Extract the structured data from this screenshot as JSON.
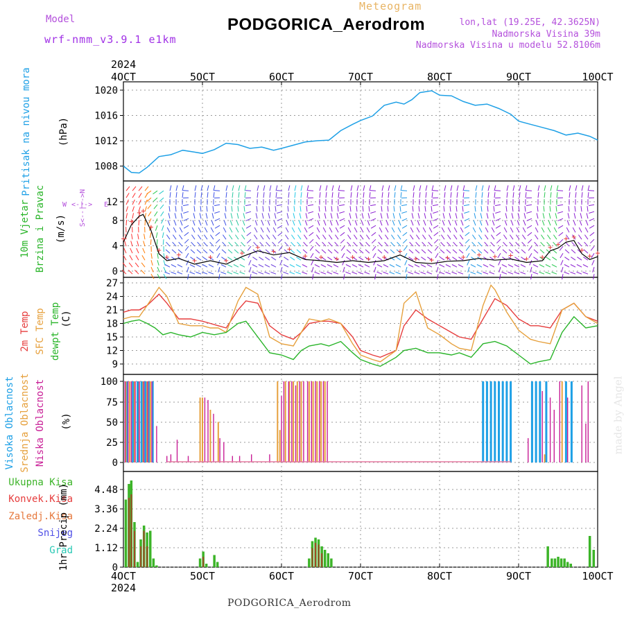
{
  "header": {
    "model_label": "Model",
    "model_name": "wrf-nmm_v3.9.1 e1km",
    "station": "PODGORICA_Aerodrom",
    "meteogram": "Meteogram",
    "coords": "lon,lat (19.25E, 42.3625N)",
    "altitude": "Nadmorska Visina 39m",
    "model_altitude": "Nadmorska Visina u modelu 52.8106m"
  },
  "footer": "PODGORICA_Aerodrom",
  "signature": "made by Angel",
  "year": "2024",
  "x_ticks": [
    "4OCT",
    "5OCT",
    "6OCT",
    "7OCT",
    "8OCT",
    "9OCT",
    "10OCT"
  ],
  "colors": {
    "pressure": "#1ea0e6",
    "temp2m": "#e63c3c",
    "sfc": "#e6a03c",
    "dew": "#28b428",
    "high_cloud": "#1ea0e6",
    "mid_cloud": "#e6a03c",
    "low_cloud": "#c81e96",
    "precip": "#3cb428",
    "conv": "#e63c3c",
    "snow": "#5050e6",
    "hail": "#28c8b4",
    "wind_label": "#28b428",
    "purple": "#b450dc"
  },
  "chart_data": [
    {
      "type": "line",
      "name": "pressure",
      "ylabel": "Pritisak na nivou mora",
      "unit": "(hPa)",
      "yticks": [
        "1008",
        "1012",
        "1016",
        "1020"
      ],
      "ylim": [
        1005.5,
        1021
      ],
      "x_days": [
        4.0,
        4.1,
        4.2,
        4.3,
        4.45,
        4.6,
        4.75,
        4.9,
        5.0,
        5.15,
        5.3,
        5.45,
        5.6,
        5.75,
        5.9,
        6.0,
        6.15,
        6.3,
        6.45,
        6.6,
        6.75,
        6.9,
        7.0,
        7.15,
        7.3,
        7.45,
        7.55,
        7.65,
        7.75,
        7.9,
        8.0,
        8.15,
        8.3,
        8.45,
        8.6,
        8.75,
        8.9,
        9.0,
        9.15,
        9.3,
        9.45,
        9.6,
        9.75,
        9.9,
        10.0
      ],
      "values": [
        1008.0,
        1007.0,
        1006.9,
        1007.8,
        1009.5,
        1009.8,
        1010.5,
        1010.2,
        1010.0,
        1010.6,
        1011.6,
        1011.4,
        1010.8,
        1011.0,
        1010.5,
        1010.8,
        1011.3,
        1011.8,
        1012.0,
        1012.1,
        1013.6,
        1014.6,
        1015.2,
        1015.9,
        1017.6,
        1018.1,
        1017.8,
        1018.5,
        1019.6,
        1019.9,
        1019.2,
        1019.1,
        1018.2,
        1017.6,
        1017.8,
        1017.1,
        1016.2,
        1015.1,
        1014.6,
        1014.1,
        1013.6,
        1012.9,
        1013.2,
        1012.7,
        1012.1
      ]
    },
    {
      "type": "line",
      "name": "wind",
      "ylabel": "10m Vjetar",
      "ylabel2": "Brzina i Pravac",
      "unit": "(m/s)",
      "compass": "N",
      "compass_w": "W",
      "compass_e": "E",
      "compass_s": "S",
      "yticks": [
        "0",
        "4",
        "8",
        "12"
      ],
      "ylim": [
        -1,
        16
      ],
      "x_days": [
        4.0,
        4.1,
        4.2,
        4.25,
        4.35,
        4.45,
        4.55,
        4.7,
        4.9,
        5.1,
        5.3,
        5.5,
        5.7,
        5.9,
        6.1,
        6.3,
        6.5,
        6.7,
        6.9,
        7.1,
        7.3,
        7.5,
        7.7,
        7.9,
        8.1,
        8.3,
        8.5,
        8.7,
        8.9,
        9.1,
        9.3,
        9.4,
        9.5,
        9.6,
        9.7,
        9.8,
        9.9,
        10.0
      ],
      "values": [
        5.0,
        8.0,
        9.5,
        9.8,
        7.0,
        3.0,
        1.8,
        2.2,
        1.2,
        1.8,
        1.2,
        2.5,
        3.5,
        2.8,
        3.2,
        2.0,
        1.8,
        1.5,
        1.8,
        1.5,
        1.8,
        2.8,
        1.5,
        1.3,
        1.7,
        1.8,
        2.2,
        1.9,
        2.1,
        1.5,
        1.8,
        3.5,
        4.0,
        5.0,
        5.3,
        3.0,
        2.0,
        2.5
      ]
    },
    {
      "type": "line",
      "name": "temperature",
      "ylabel": "2m Temp",
      "ylabel2": "SFC Temp",
      "ylabel3": "dewpt Temp",
      "unit": "(C)",
      "yticks": [
        "9",
        "12",
        "15",
        "18",
        "21",
        "24",
        "27"
      ],
      "ylim": [
        7.5,
        28
      ],
      "series": [
        {
          "name": "2m Temp",
          "x_days": [
            4.0,
            4.1,
            4.2,
            4.3,
            4.45,
            4.55,
            4.7,
            4.85,
            5.0,
            5.1,
            5.2,
            5.3,
            5.45,
            5.55,
            5.7,
            5.85,
            6.0,
            6.15,
            6.25,
            6.35,
            6.5,
            6.6,
            6.75,
            6.9,
            7.0,
            7.15,
            7.25,
            7.45,
            7.55,
            7.7,
            7.85,
            8.0,
            8.15,
            8.25,
            8.4,
            8.55,
            8.7,
            8.85,
            9.0,
            9.15,
            9.25,
            9.4,
            9.55,
            9.7,
            9.85,
            10.0
          ],
          "values": [
            20.5,
            21.0,
            21.0,
            22.0,
            24.5,
            22.5,
            19.0,
            19.0,
            18.5,
            18.0,
            17.5,
            17.0,
            21.0,
            23.0,
            22.5,
            17.5,
            15.5,
            14.5,
            16.0,
            18.0,
            18.5,
            18.5,
            18.0,
            15.0,
            12.0,
            11.0,
            10.5,
            12.0,
            17.5,
            21.0,
            19.0,
            17.5,
            16.0,
            15.0,
            14.5,
            19.0,
            23.5,
            22.0,
            19.0,
            17.5,
            17.5,
            17.0,
            21.0,
            22.5,
            19.5,
            18.5
          ]
        },
        {
          "name": "SFC Temp",
          "x_days": [
            4.0,
            4.1,
            4.2,
            4.3,
            4.45,
            4.55,
            4.7,
            4.85,
            5.0,
            5.1,
            5.2,
            5.3,
            5.45,
            5.55,
            5.7,
            5.85,
            6.0,
            6.15,
            6.25,
            6.35,
            6.5,
            6.6,
            6.75,
            6.9,
            7.0,
            7.15,
            7.25,
            7.45,
            7.55,
            7.7,
            7.85,
            8.0,
            8.15,
            8.25,
            8.4,
            8.55,
            8.65,
            8.7,
            8.85,
            9.0,
            9.15,
            9.25,
            9.4,
            9.55,
            9.7,
            9.85,
            10.0
          ],
          "values": [
            19.0,
            19.5,
            19.5,
            22.0,
            26.0,
            24.0,
            18.0,
            17.5,
            17.5,
            17.0,
            17.0,
            16.0,
            23.0,
            26.0,
            24.5,
            15.0,
            13.5,
            13.0,
            16.0,
            19.0,
            18.5,
            19.0,
            18.0,
            13.5,
            11.0,
            10.0,
            9.5,
            12.0,
            22.5,
            25.0,
            17.0,
            15.5,
            13.5,
            12.5,
            12.0,
            22.0,
            26.5,
            25.5,
            20.5,
            16.5,
            14.5,
            14.0,
            13.5,
            21.0,
            22.5,
            19.5,
            18.0
          ]
        },
        {
          "name": "dewpt Temp",
          "x_days": [
            4.0,
            4.1,
            4.2,
            4.3,
            4.4,
            4.5,
            4.6,
            4.7,
            4.85,
            5.0,
            5.15,
            5.3,
            5.45,
            5.55,
            5.7,
            5.85,
            6.0,
            6.15,
            6.25,
            6.35,
            6.5,
            6.6,
            6.75,
            6.9,
            7.0,
            7.15,
            7.25,
            7.45,
            7.55,
            7.7,
            7.85,
            8.0,
            8.15,
            8.25,
            8.4,
            8.55,
            8.7,
            8.85,
            9.0,
            9.15,
            9.25,
            9.4,
            9.55,
            9.7,
            9.85,
            10.0
          ],
          "values": [
            18.0,
            18.5,
            18.8,
            18.0,
            17.0,
            15.5,
            16.0,
            15.5,
            15.0,
            16.0,
            15.5,
            16.0,
            18.0,
            18.5,
            15.0,
            11.5,
            11.0,
            10.0,
            12.0,
            13.0,
            13.5,
            13.0,
            14.0,
            11.5,
            10.0,
            9.0,
            8.5,
            10.5,
            12.0,
            12.5,
            11.5,
            11.5,
            11.0,
            11.5,
            10.5,
            13.5,
            14.0,
            13.0,
            11.0,
            9.0,
            9.5,
            10.0,
            16.0,
            19.5,
            17.0,
            17.5
          ]
        }
      ]
    },
    {
      "type": "bar",
      "name": "clouds",
      "ylabel": "Visoka Oblacnost",
      "ylabel2": "Srednja Oblacnost",
      "ylabel3": "Niska Oblacnost",
      "unit": "(%)",
      "yticks": [
        "0",
        "25",
        "50",
        "75",
        "100"
      ],
      "ylim": [
        0,
        100
      ],
      "series": [
        {
          "name": "Visoka Oblacnost",
          "x_days": [
            4.05,
            4.12,
            4.18,
            4.23,
            4.28,
            4.33,
            4.37,
            8.55,
            8.6,
            8.65,
            8.7,
            8.75,
            8.8,
            8.85,
            8.9,
            9.17,
            9.22,
            9.27,
            9.35,
            9.6,
            9.67
          ],
          "values": [
            100,
            100,
            100,
            100,
            100,
            100,
            100,
            100,
            100,
            100,
            100,
            100,
            100,
            100,
            100,
            100,
            100,
            100,
            100,
            100,
            100
          ]
        },
        {
          "name": "Srednja Oblacnost",
          "x_days": [
            4.03,
            4.08,
            4.14,
            4.2,
            4.25,
            4.3,
            4.34,
            4.97,
            5.0,
            5.1,
            5.2,
            5.95,
            5.98,
            6.05,
            6.1,
            6.15,
            6.2,
            6.25,
            6.35,
            6.4,
            6.45,
            6.5,
            6.55,
            9.33,
            9.55
          ],
          "values": [
            100,
            100,
            100,
            100,
            100,
            100,
            100,
            80,
            80,
            65,
            50,
            100,
            40,
            100,
            100,
            100,
            100,
            100,
            100,
            100,
            100,
            100,
            100,
            10,
            100
          ]
        },
        {
          "name": "Niska Oblacnost",
          "x_days": [
            4.02,
            4.06,
            4.1,
            4.15,
            4.2,
            4.26,
            4.31,
            4.36,
            4.42,
            4.55,
            4.6,
            4.68,
            4.82,
            5.03,
            5.07,
            5.14,
            5.22,
            5.27,
            5.38,
            5.47,
            5.62,
            5.85,
            6.0,
            6.03,
            6.09,
            6.13,
            6.18,
            6.23,
            6.28,
            6.33,
            6.38,
            6.43,
            6.48,
            6.53,
            6.58,
            9.12,
            9.3,
            9.4,
            9.45,
            9.52,
            9.62,
            9.8,
            9.85,
            9.88
          ],
          "values": [
            100,
            100,
            100,
            100,
            100,
            100,
            100,
            100,
            45,
            8,
            10,
            28,
            8,
            80,
            77,
            60,
            30,
            25,
            8,
            8,
            10,
            10,
            82,
            100,
            100,
            100,
            95,
            100,
            100,
            100,
            100,
            100,
            100,
            100,
            100,
            30,
            88,
            80,
            65,
            100,
            80,
            95,
            48,
            100
          ]
        },
        {
          "name": "Pink baseline",
          "x_days": [
            4.6,
            6.0,
            8.5
          ],
          "values": [
            1,
            1,
            1
          ]
        }
      ]
    },
    {
      "type": "bar",
      "name": "precipitation",
      "ylabel": "1hr Precip",
      "unit": "(mm)",
      "legend": [
        "Ukupna Kisa",
        "Konvek.Kisa",
        "Zaledj.Kisa",
        "Snijeg",
        "Grad"
      ],
      "yticks": [
        "0",
        "1.12",
        "2.24",
        "3.36",
        "4.48"
      ],
      "ylim": [
        0,
        5.1
      ],
      "series": [
        {
          "name": "Ukupna Kisa",
          "x_days": [
            4.03,
            4.07,
            4.1,
            4.14,
            4.18,
            4.22,
            4.26,
            4.3,
            4.34,
            4.38,
            4.42,
            4.97,
            5.01,
            5.05,
            5.15,
            5.19,
            6.35,
            6.39,
            6.43,
            6.47,
            6.51,
            6.55,
            6.59,
            6.63,
            9.37,
            9.42,
            9.46,
            9.5,
            9.54,
            9.58,
            9.62,
            9.66,
            9.9,
            9.95
          ],
          "values": [
            3.9,
            4.8,
            5.0,
            2.6,
            0.3,
            1.6,
            2.4,
            2.0,
            2.1,
            0.5,
            0.1,
            0.5,
            0.9,
            0.2,
            0.7,
            0.3,
            0.5,
            1.5,
            1.7,
            1.6,
            1.2,
            1.0,
            0.8,
            0.5,
            1.2,
            0.5,
            0.5,
            0.6,
            0.5,
            0.5,
            0.3,
            0.2,
            1.8,
            1.0
          ]
        },
        {
          "name": "Konvek.Kisa",
          "x_days": [
            4.07,
            4.1,
            4.14,
            4.22,
            4.26,
            4.3,
            5.01,
            6.39,
            6.43,
            6.47,
            6.51
          ],
          "values": [
            4.0,
            4.2,
            2.1,
            1.2,
            2.1,
            1.2,
            0.6,
            1.1,
            1.4,
            1.3,
            0.8
          ]
        }
      ]
    }
  ]
}
